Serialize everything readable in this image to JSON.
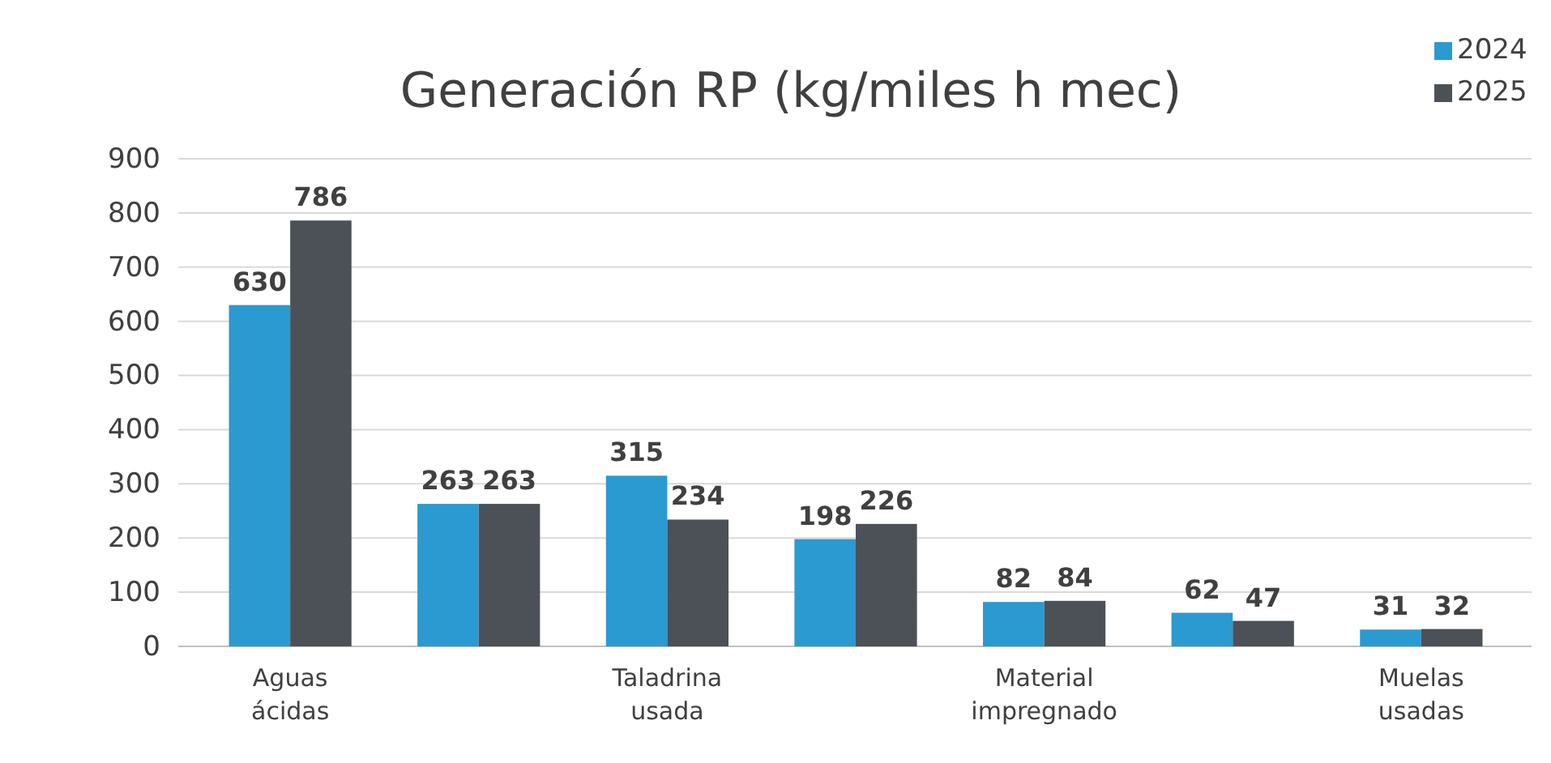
{
  "chart_data": {
    "type": "bar",
    "title": "Generación RP (kg/miles h mec)",
    "categories": [
      "Aguas ácidas",
      null,
      "Taladrina usada",
      null,
      "Material impregnado",
      null,
      "Muelas usadas"
    ],
    "series": [
      {
        "name": "2024",
        "color": "#2a9ad0",
        "values": [
          630,
          263,
          315,
          198,
          82,
          62,
          31
        ]
      },
      {
        "name": "2025",
        "color": "#4b5157",
        "values": [
          786,
          263,
          234,
          226,
          84,
          47,
          32
        ]
      }
    ],
    "ylim": [
      0,
      900
    ],
    "yticks": [
      0,
      100,
      200,
      300,
      400,
      500,
      600,
      700,
      800,
      900
    ],
    "grid": "y",
    "legend": "top right",
    "data_labels": true
  }
}
